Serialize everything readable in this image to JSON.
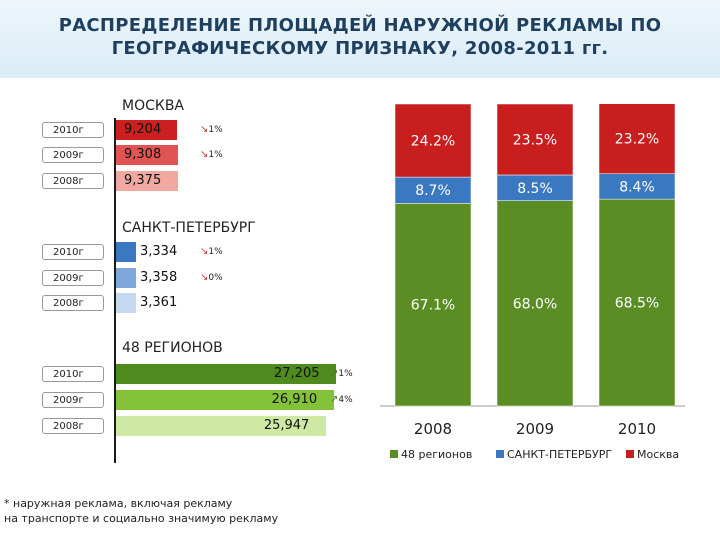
{
  "title": "РАСПРЕДЕЛЕНИЕ ПЛОЩАДЕЙ НАРУЖНОЙ РЕКЛАМЫ ПО ГЕОГРАФИЧЕСКОМУ ПРИЗНАКУ, 2008-2011 гг.",
  "footnote_line1": "* наружная реклама, включая рекламу",
  "footnote_line2": "на транспорте и социально значимую рекламу",
  "colors": {
    "moscow": [
      "#cc1f1f",
      "#e05454",
      "#f0a8a0"
    ],
    "spb": [
      "#3b78c2",
      "#7ea7db",
      "#c4d8ef"
    ],
    "regions": [
      "#4f8a1f",
      "#84c23a",
      "#cfe8a4"
    ]
  },
  "regions_panel": [
    {
      "name": "МОСКВА",
      "rows": [
        {
          "year": "2010г",
          "value": "9,204",
          "change": "1%",
          "direction": "down"
        },
        {
          "year": "2009г",
          "value": "9,308",
          "change": "1%",
          "direction": "down"
        },
        {
          "year": "2008г",
          "value": "9,375",
          "change": "",
          "direction": ""
        }
      ]
    },
    {
      "name": "САНКТ-ПЕТЕРБУРГ",
      "rows": [
        {
          "year": "2010г",
          "value": "3,334",
          "change": "1%",
          "direction": "down"
        },
        {
          "year": "2009г",
          "value": "3,358",
          "change": "0%",
          "direction": "down"
        },
        {
          "year": "2008г",
          "value": "3,361",
          "change": "",
          "direction": ""
        }
      ]
    },
    {
      "name": "48 РЕГИОНОВ",
      "rows": [
        {
          "year": "2010г",
          "value": "27,205",
          "change": "1%",
          "direction": "up"
        },
        {
          "year": "2009г",
          "value": "26,910",
          "change": "4%",
          "direction": "up"
        },
        {
          "year": "2008г",
          "value": "25,947",
          "change": "",
          "direction": ""
        }
      ]
    }
  ],
  "chart_data": [
    {
      "type": "bar",
      "orientation": "horizontal",
      "title": "МОСКВА",
      "categories": [
        "2010г",
        "2009г",
        "2008г"
      ],
      "values": [
        9204,
        9308,
        9375
      ],
      "labels": [
        "9,204",
        "9,308",
        "9,375"
      ],
      "changes": [
        "1%",
        "1%",
        ""
      ]
    },
    {
      "type": "bar",
      "orientation": "horizontal",
      "title": "САНКТ-ПЕТЕРБУРГ",
      "categories": [
        "2010г",
        "2009г",
        "2008г"
      ],
      "values": [
        3334,
        3358,
        3361
      ],
      "labels": [
        "3,334",
        "3,358",
        "3,361"
      ],
      "changes": [
        "1%",
        "0%",
        ""
      ]
    },
    {
      "type": "bar",
      "orientation": "horizontal",
      "title": "48 РЕГИОНОВ",
      "categories": [
        "2010г",
        "2009г",
        "2008г"
      ],
      "values": [
        27205,
        26910,
        25947
      ],
      "labels": [
        "27,205",
        "26,910",
        "25,947"
      ],
      "changes": [
        "1%",
        "4%",
        ""
      ]
    },
    {
      "type": "bar",
      "stacked": true,
      "percent": true,
      "categories": [
        "2008",
        "2009",
        "2010"
      ],
      "series": [
        {
          "name": "48 регионов",
          "color": "#5a8e25",
          "values": [
            67.1,
            68.0,
            68.5
          ],
          "labels": [
            "67.1%",
            "68.0%",
            "68.5%"
          ]
        },
        {
          "name": "САНКТ-ПЕТЕРБУРГ",
          "color": "#3b78c2",
          "values": [
            8.7,
            8.5,
            8.4
          ],
          "labels": [
            "8.7%",
            "8.5%",
            "8.4%"
          ]
        },
        {
          "name": "Москва",
          "color": "#c81e1e",
          "values": [
            24.2,
            23.5,
            23.2
          ],
          "labels": [
            "24.2%",
            "23.5%",
            "23.2%"
          ]
        }
      ],
      "ylim": [
        0,
        100
      ],
      "legend": "bottom"
    }
  ]
}
